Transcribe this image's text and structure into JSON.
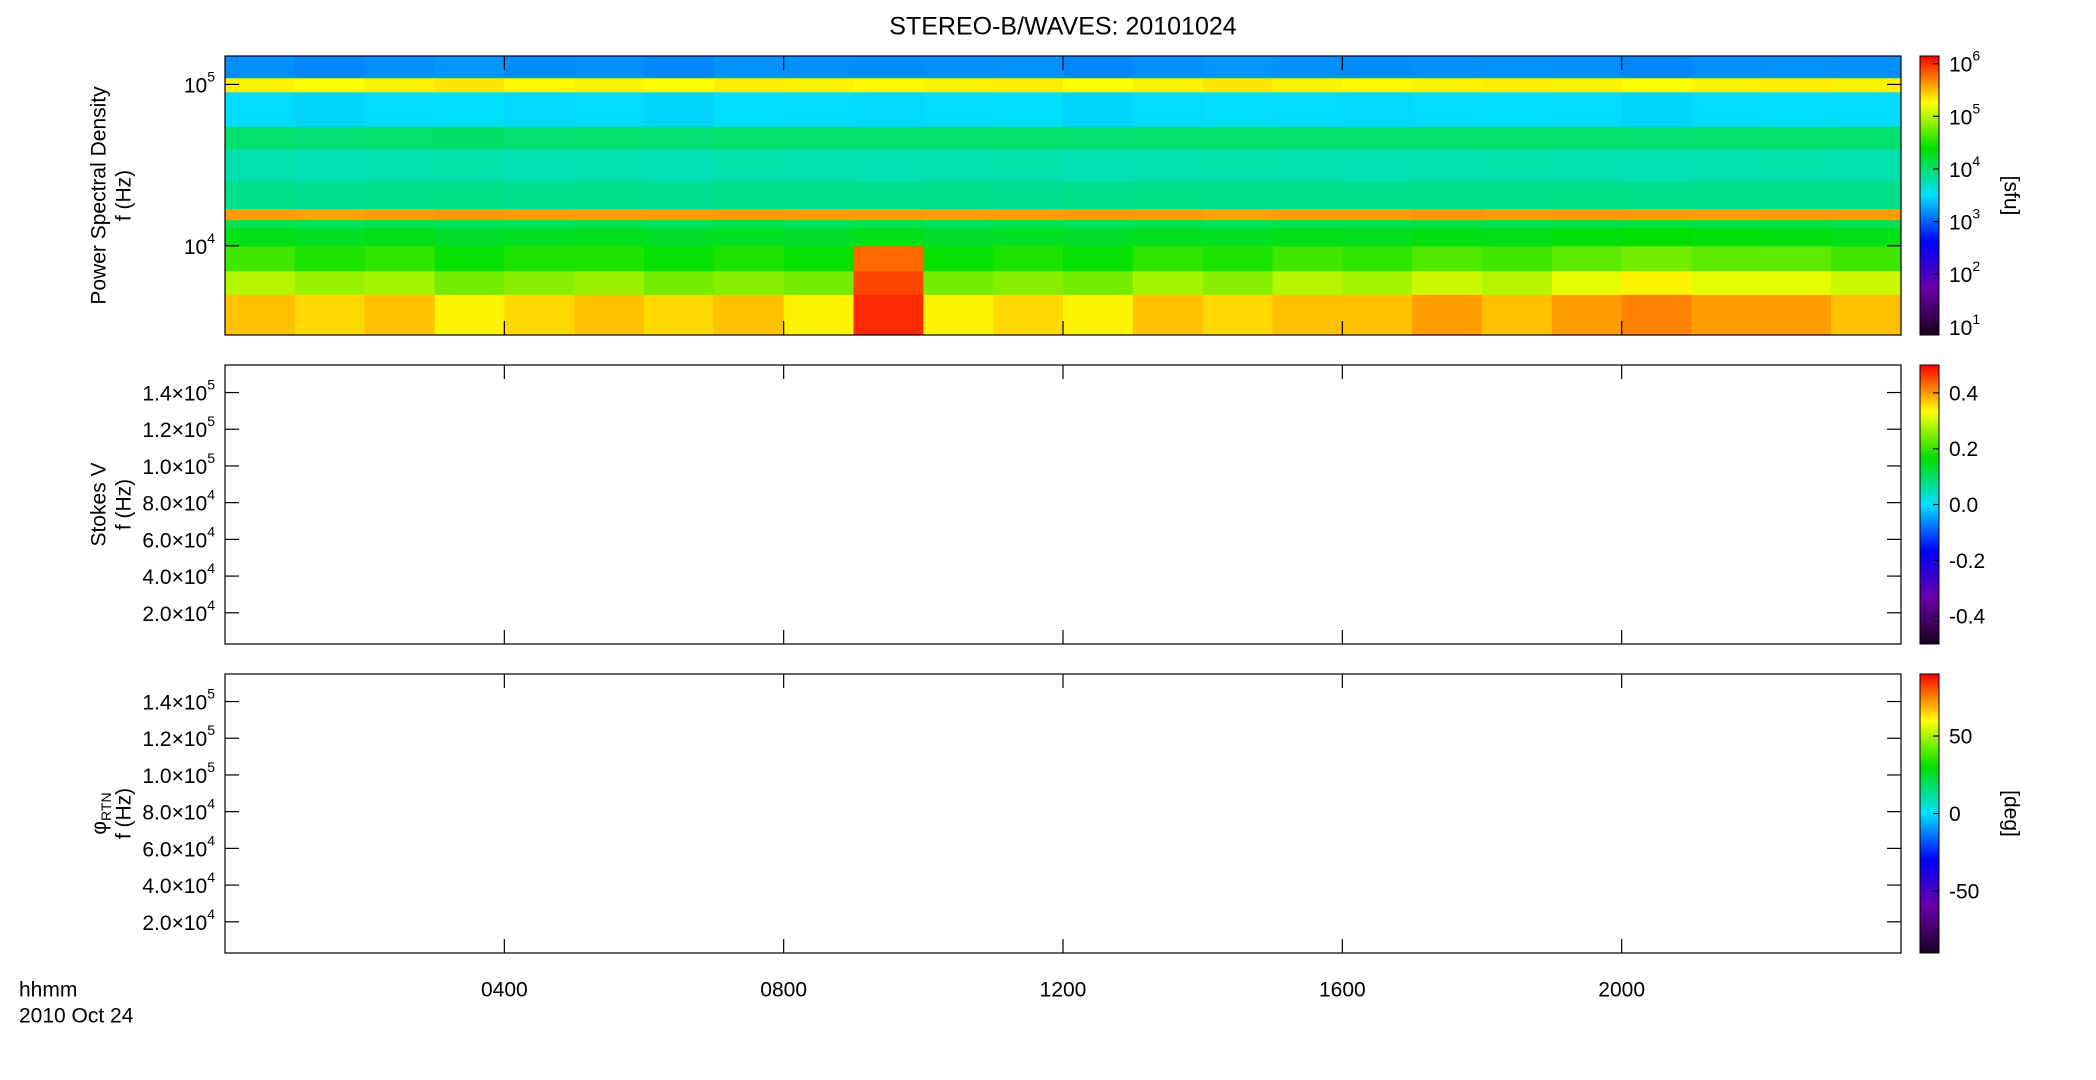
{
  "chart_data": [
    {
      "type": "heatmap",
      "title": "STEREO-B/WAVES: 20101024",
      "ylabel": [
        "Power Spectral Density",
        "f (Hz)"
      ],
      "log_y": true,
      "ylim": [
        2800,
        150000
      ],
      "yticks": [
        {
          "value": 10000,
          "label": "10^4"
        },
        {
          "value": 100000,
          "label": "10^5"
        }
      ],
      "x": [
        0,
        1,
        2,
        3,
        4,
        5,
        6,
        7,
        8,
        9,
        10,
        11,
        12,
        13,
        14,
        15,
        16,
        17,
        18,
        19,
        20,
        21,
        22,
        23,
        24
      ],
      "y": [
        2800,
        5000,
        7000,
        10000,
        13000,
        14500,
        17000,
        25000,
        40000,
        55000,
        90000,
        110000,
        150000
      ],
      "z": [
        [
          300000,
          250000,
          300000,
          200000,
          250000,
          300000,
          250000,
          300000,
          200000,
          1000000,
          200000,
          250000,
          200000,
          300000,
          250000,
          300000,
          300000,
          400000,
          300000,
          400000,
          500000,
          400000,
          400000,
          300000
        ],
        [
          100000,
          80000,
          90000,
          60000,
          70000,
          80000,
          60000,
          70000,
          60000,
          800000,
          60000,
          70000,
          60000,
          90000,
          70000,
          100000,
          90000,
          120000,
          100000,
          150000,
          200000,
          150000,
          150000,
          120000
        ],
        [
          40000,
          30000,
          35000,
          25000,
          30000,
          30000,
          25000,
          30000,
          25000,
          600000,
          25000,
          30000,
          25000,
          35000,
          30000,
          40000,
          35000,
          45000,
          40000,
          50000,
          60000,
          50000,
          50000,
          40000
        ],
        [
          20000,
          18000,
          20000,
          17000,
          18000,
          19000,
          17000,
          18000,
          17000,
          20000,
          17000,
          18000,
          17000,
          19000,
          18000,
          20000,
          19000,
          21000,
          20000,
          22000,
          24000,
          22000,
          21000,
          20000
        ],
        [
          12000,
          11000,
          12000,
          11000,
          11000,
          12000,
          11000,
          12000,
          11000,
          12000,
          11000,
          12000,
          11000,
          12000,
          11000,
          12000,
          12000,
          13000,
          12000,
          13000,
          14000,
          13000,
          13000,
          12000
        ],
        [
          400000,
          380000,
          400000,
          420000,
          400000,
          390000,
          400000,
          410000,
          400000,
          400000,
          390000,
          400000,
          410000,
          400000,
          380000,
          400000,
          400000,
          420000,
          400000,
          410000,
          400000,
          390000,
          400000,
          400000
        ],
        [
          8000,
          7500,
          8000,
          8200,
          7800,
          8000,
          7600,
          8000,
          7900,
          8100,
          8000,
          7700,
          8000,
          8200,
          7800,
          8000,
          8100,
          7900,
          8000,
          8300,
          8000,
          7800,
          8000,
          8100
        ],
        [
          6000,
          5800,
          6000,
          6200,
          5900,
          6000,
          5700,
          6100,
          6000,
          5900,
          6000,
          6100,
          5800,
          6000,
          6200,
          6000,
          5900,
          6000,
          6100,
          6000,
          5800,
          6000,
          6100,
          6000
        ],
        [
          10000,
          9500,
          10000,
          10500,
          9800,
          10000,
          9600,
          10200,
          10000,
          9900,
          10000,
          10100,
          9700,
          10000,
          10300,
          10000,
          9900,
          10000,
          10200,
          10000,
          9800,
          10000,
          10100,
          10000
        ],
        [
          3000,
          2800,
          3000,
          3200,
          2900,
          3000,
          2800,
          3100,
          3000,
          2900,
          3000,
          3100,
          2800,
          3000,
          3200,
          3000,
          2900,
          3000,
          3100,
          3000,
          2800,
          3000,
          3100,
          3000
        ],
        [
          200000,
          180000,
          200000,
          220000,
          190000,
          200000,
          180000,
          210000,
          200000,
          190000,
          200000,
          210000,
          180000,
          200000,
          220000,
          200000,
          190000,
          200000,
          210000,
          200000,
          180000,
          200000,
          210000,
          200000
        ],
        [
          1500,
          1400,
          1500,
          1600,
          1450,
          1500,
          1400,
          1550,
          1500,
          1450,
          1500,
          1550,
          1400,
          1500,
          1600,
          1500,
          1450,
          1500,
          1550,
          1500,
          1400,
          1500,
          1550,
          1500
        ]
      ],
      "zlim": [
        7,
        1400000
      ],
      "log_z": true,
      "zticks": [
        {
          "value": 10,
          "label": "10^1"
        },
        {
          "value": 100,
          "label": "10^2"
        },
        {
          "value": 1000,
          "label": "10^3"
        },
        {
          "value": 10000,
          "label": "10^4"
        },
        {
          "value": 100000,
          "label": "10^5"
        },
        {
          "value": 1000000,
          "label": "10^6"
        }
      ],
      "colorbar_label": "[sfu]",
      "colormap": [
        "#1a0020",
        "#6a00a8",
        "#0000ff",
        "#00e0ff",
        "#00e000",
        "#ffff00",
        "#ff0000"
      ]
    },
    {
      "type": "heatmap",
      "ylabel": [
        "Stokes V",
        "f (Hz)"
      ],
      "log_y": false,
      "ylim": [
        3000,
        155000
      ],
      "yticks": [
        {
          "value": 20000,
          "label": "2.0×10^4"
        },
        {
          "value": 40000,
          "label": "4.0×10^4"
        },
        {
          "value": 60000,
          "label": "6.0×10^4"
        },
        {
          "value": 80000,
          "label": "8.0×10^4"
        },
        {
          "value": 100000,
          "label": "1.0×10^5"
        },
        {
          "value": 120000,
          "label": "1.2×10^5"
        },
        {
          "value": 140000,
          "label": "1.4×10^5"
        }
      ],
      "zlim": [
        -0.5,
        0.5
      ],
      "log_z": false,
      "zticks": [
        -0.4,
        -0.2,
        {
          "value": 0,
          "label": "0.0"
        },
        0.2,
        0.4
      ],
      "colormap": [
        "#1a0020",
        "#6a00a8",
        "#0000ff",
        "#00e0ff",
        "#00e000",
        "#ffff00",
        "#ff0000"
      ]
    },
    {
      "type": "heatmap",
      "ylabel": [
        "φ_RTN",
        "f (Hz)"
      ],
      "log_y": false,
      "ylim": [
        3000,
        155000
      ],
      "yticks": [
        {
          "value": 20000,
          "label": "2.0×10^4"
        },
        {
          "value": 40000,
          "label": "4.0×10^4"
        },
        {
          "value": 60000,
          "label": "6.0×10^4"
        },
        {
          "value": 80000,
          "label": "8.0×10^4"
        },
        {
          "value": 100000,
          "label": "1.0×10^5"
        },
        {
          "value": 120000,
          "label": "1.2×10^5"
        },
        {
          "value": 140000,
          "label": "1.4×10^5"
        }
      ],
      "zlim": [
        -90,
        90
      ],
      "log_z": false,
      "zticks": [
        -50,
        0,
        50
      ],
      "colorbar_label": "[deg]",
      "colormap": [
        "#1a0020",
        "#6a00a8",
        "#0000ff",
        "#00e0ff",
        "#00e000",
        "#ffff00",
        "#ff0000"
      ],
      "xlim": [
        0,
        24
      ],
      "xticks": [
        {
          "value": 4,
          "label": "0400"
        },
        {
          "value": 8,
          "label": "0800"
        },
        {
          "value": 12,
          "label": "1200"
        },
        {
          "value": 16,
          "label": "1600"
        },
        {
          "value": 20,
          "label": "2000"
        }
      ],
      "xlabel": [
        "hhmm",
        "2010 Oct 24"
      ]
    }
  ]
}
